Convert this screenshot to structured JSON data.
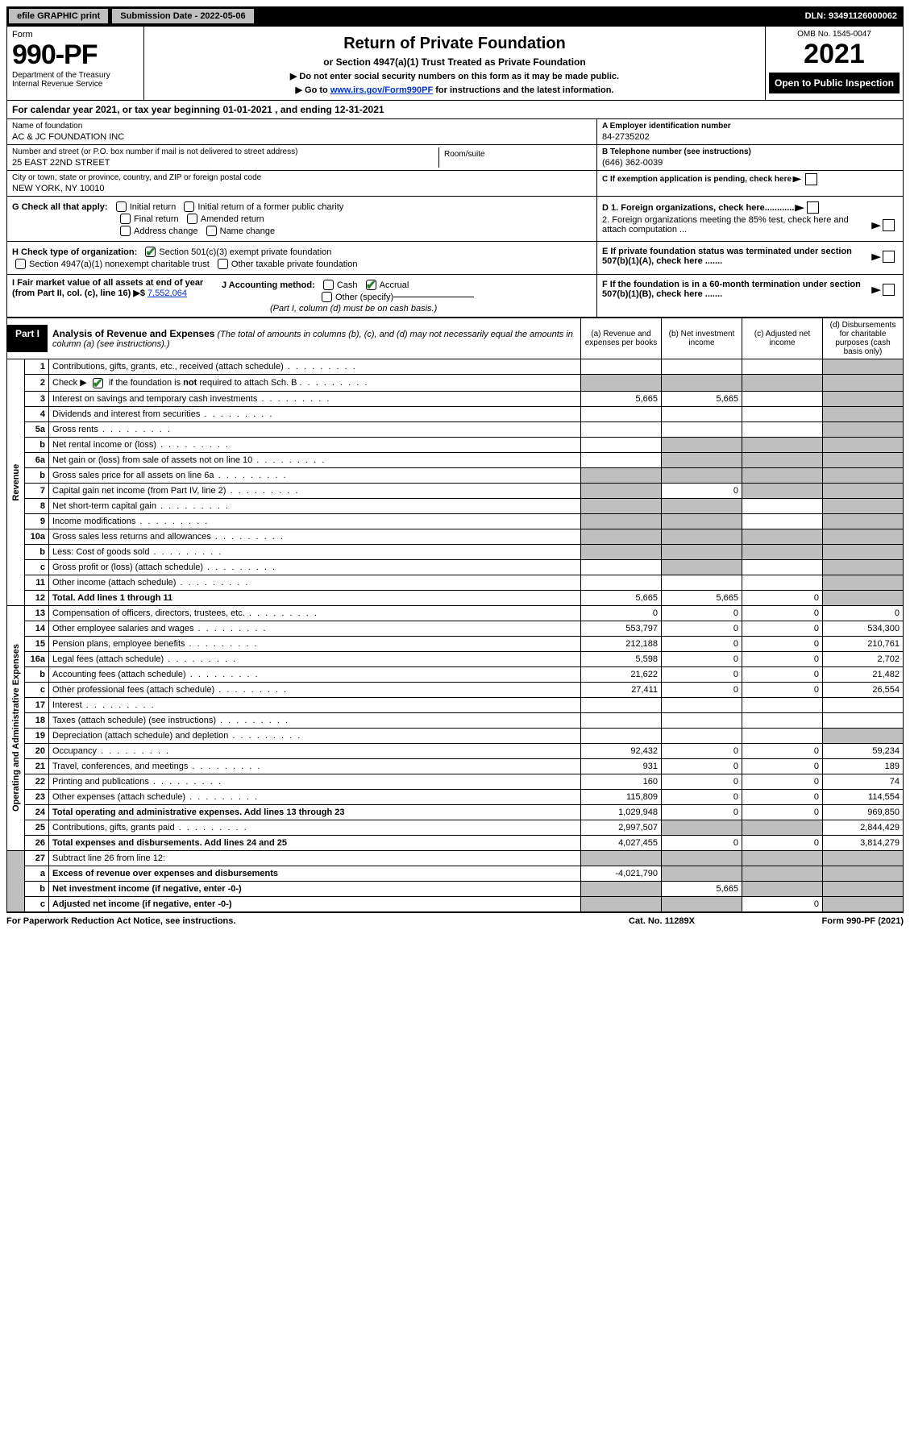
{
  "top_bar": {
    "efile": "efile GRAPHIC print",
    "sub_date_label": "Submission Date - 2022-05-06",
    "dln": "DLN: 93491126000062"
  },
  "header": {
    "form_word": "Form",
    "form_num": "990-PF",
    "dept": "Department of the Treasury",
    "irs": "Internal Revenue Service",
    "title": "Return of Private Foundation",
    "subtitle": "or Section 4947(a)(1) Trust Treated as Private Foundation",
    "note1": "▶ Do not enter social security numbers on this form as it may be made public.",
    "note2_pre": "▶ Go to ",
    "note2_link": "www.irs.gov/Form990PF",
    "note2_post": " for instructions and the latest information.",
    "omb": "OMB No. 1545-0047",
    "year": "2021",
    "open": "Open to Public Inspection"
  },
  "cal_year": "For calendar year 2021, or tax year beginning 01-01-2021              , and ending 12-31-2021",
  "name_label": "Name of foundation",
  "name": "AC & JC FOUNDATION INC",
  "street_label": "Number and street (or P.O. box number if mail is not delivered to street address)",
  "street": "25 EAST 22ND STREET",
  "room_label": "Room/suite",
  "city_label": "City or town, state or province, country, and ZIP or foreign postal code",
  "city": "NEW YORK, NY  10010",
  "a_label": "A Employer identification number",
  "a_val": "84-2735202",
  "b_label": "B Telephone number (see instructions)",
  "b_val": "(646) 362-0039",
  "c_label": "C If exemption application is pending, check here",
  "g": {
    "label": "G Check all that apply:",
    "initial": "Initial return",
    "initial_former": "Initial return of a former public charity",
    "final": "Final return",
    "amended": "Amended return",
    "addr": "Address change",
    "name": "Name change"
  },
  "d": {
    "d1": "D 1. Foreign organizations, check here.............",
    "d2": "2. Foreign organizations meeting the 85% test, check here and attach computation ..."
  },
  "h": {
    "label": "H Check type of organization:",
    "s501": "Section 501(c)(3) exempt private foundation",
    "s4947": "Section 4947(a)(1) nonexempt charitable trust",
    "other": "Other taxable private foundation"
  },
  "e_label": "E  If private foundation status was terminated under section 507(b)(1)(A), check here .......",
  "i": {
    "label": "I Fair market value of all assets at end of year (from Part II, col. (c), line 16)",
    "arrow": "▶$",
    "val": "7,552,064"
  },
  "j": {
    "label": "J Accounting method:",
    "cash": "Cash",
    "accrual": "Accrual",
    "other": "Other (specify)",
    "note": "(Part I, column (d) must be on cash basis.)"
  },
  "f_label": "F  If the foundation is in a 60-month termination under section 507(b)(1)(B), check here .......",
  "part1": {
    "tag": "Part I",
    "title": "Analysis of Revenue and Expenses",
    "desc": "(The total of amounts in columns (b), (c), and (d) may not necessarily equal the amounts in column (a) (see instructions).)"
  },
  "cols": {
    "a": "(a)   Revenue and expenses per books",
    "b": "(b)   Net investment income",
    "c": "(c)   Adjusted net income",
    "d": "(d)   Disbursements for charitable purposes (cash basis only)"
  },
  "side": {
    "rev": "Revenue",
    "exp": "Operating and Administrative Expenses"
  },
  "rows": [
    {
      "n": "1",
      "d": "Contributions, gifts, grants, etc., received (attach schedule)",
      "a": "",
      "b": "",
      "c": "",
      "dcol": "",
      "grey_d": true
    },
    {
      "n": "2",
      "d": "Check ▶ ☑ if the foundation is not required to attach Sch. B",
      "a": "",
      "b": "",
      "c": "",
      "dcol": "",
      "grey_all": true,
      "special": "check"
    },
    {
      "n": "3",
      "d": "Interest on savings and temporary cash investments",
      "a": "5,665",
      "b": "5,665",
      "c": "",
      "dcol": "",
      "grey_d": true
    },
    {
      "n": "4",
      "d": "Dividends and interest from securities",
      "a": "",
      "b": "",
      "c": "",
      "dcol": "",
      "grey_d": true
    },
    {
      "n": "5a",
      "d": "Gross rents",
      "a": "",
      "b": "",
      "c": "",
      "dcol": "",
      "grey_d": true
    },
    {
      "n": "b",
      "d": "Net rental income or (loss)",
      "a": "",
      "b": "",
      "c": "",
      "dcol": "",
      "grey_bcd": true,
      "underline": true
    },
    {
      "n": "6a",
      "d": "Net gain or (loss) from sale of assets not on line 10",
      "a": "",
      "b": "",
      "c": "",
      "dcol": "",
      "grey_bcd": true
    },
    {
      "n": "b",
      "d": "Gross sales price for all assets on line 6a",
      "a": "",
      "b": "",
      "c": "",
      "dcol": "",
      "grey_abcd": true,
      "underline": true
    },
    {
      "n": "7",
      "d": "Capital gain net income (from Part IV, line 2)",
      "a": "",
      "b": "0",
      "c": "",
      "dcol": "",
      "grey_a": true,
      "grey_cd": true
    },
    {
      "n": "8",
      "d": "Net short-term capital gain",
      "a": "",
      "b": "",
      "c": "",
      "dcol": "",
      "grey_ab": true,
      "grey_d": true
    },
    {
      "n": "9",
      "d": "Income modifications",
      "a": "",
      "b": "",
      "c": "",
      "dcol": "",
      "grey_ab": true,
      "grey_d": true
    },
    {
      "n": "10a",
      "d": "Gross sales less returns and allowances",
      "a": "",
      "b": "",
      "c": "",
      "dcol": "",
      "grey_abcd": true,
      "underline": true
    },
    {
      "n": "b",
      "d": "Less: Cost of goods sold",
      "a": "",
      "b": "",
      "c": "",
      "dcol": "",
      "grey_abcd": true,
      "underline": true
    },
    {
      "n": "c",
      "d": "Gross profit or (loss) (attach schedule)",
      "a": "",
      "b": "",
      "c": "",
      "dcol": "",
      "grey_b": true,
      "grey_d": true
    },
    {
      "n": "11",
      "d": "Other income (attach schedule)",
      "a": "",
      "b": "",
      "c": "",
      "dcol": "",
      "grey_d": true
    },
    {
      "n": "12",
      "d": "Total. Add lines 1 through 11",
      "a": "5,665",
      "b": "5,665",
      "c": "0",
      "dcol": "",
      "bold": true,
      "grey_d": true
    }
  ],
  "exp_rows": [
    {
      "n": "13",
      "d": "Compensation of officers, directors, trustees, etc.",
      "a": "0",
      "b": "0",
      "c": "0",
      "dcol": "0"
    },
    {
      "n": "14",
      "d": "Other employee salaries and wages",
      "a": "553,797",
      "b": "0",
      "c": "0",
      "dcol": "534,300"
    },
    {
      "n": "15",
      "d": "Pension plans, employee benefits",
      "a": "212,188",
      "b": "0",
      "c": "0",
      "dcol": "210,761"
    },
    {
      "n": "16a",
      "d": "Legal fees (attach schedule)",
      "a": "5,598",
      "b": "0",
      "c": "0",
      "dcol": "2,702"
    },
    {
      "n": "b",
      "d": "Accounting fees (attach schedule)",
      "a": "21,622",
      "b": "0",
      "c": "0",
      "dcol": "21,482"
    },
    {
      "n": "c",
      "d": "Other professional fees (attach schedule)",
      "a": "27,411",
      "b": "0",
      "c": "0",
      "dcol": "26,554"
    },
    {
      "n": "17",
      "d": "Interest",
      "a": "",
      "b": "",
      "c": "",
      "dcol": ""
    },
    {
      "n": "18",
      "d": "Taxes (attach schedule) (see instructions)",
      "a": "",
      "b": "",
      "c": "",
      "dcol": ""
    },
    {
      "n": "19",
      "d": "Depreciation (attach schedule) and depletion",
      "a": "",
      "b": "",
      "c": "",
      "dcol": "",
      "grey_d": true
    },
    {
      "n": "20",
      "d": "Occupancy",
      "a": "92,432",
      "b": "0",
      "c": "0",
      "dcol": "59,234"
    },
    {
      "n": "21",
      "d": "Travel, conferences, and meetings",
      "a": "931",
      "b": "0",
      "c": "0",
      "dcol": "189"
    },
    {
      "n": "22",
      "d": "Printing and publications",
      "a": "160",
      "b": "0",
      "c": "0",
      "dcol": "74"
    },
    {
      "n": "23",
      "d": "Other expenses (attach schedule)",
      "a": "115,809",
      "b": "0",
      "c": "0",
      "dcol": "114,554"
    },
    {
      "n": "24",
      "d": "Total operating and administrative expenses. Add lines 13 through 23",
      "a": "1,029,948",
      "b": "0",
      "c": "0",
      "dcol": "969,850",
      "bold": true
    },
    {
      "n": "25",
      "d": "Contributions, gifts, grants paid",
      "a": "2,997,507",
      "b": "",
      "c": "",
      "dcol": "2,844,429",
      "grey_bc": true
    },
    {
      "n": "26",
      "d": "Total expenses and disbursements. Add lines 24 and 25",
      "a": "4,027,455",
      "b": "0",
      "c": "0",
      "dcol": "3,814,279",
      "bold": true
    }
  ],
  "sub_rows": [
    {
      "n": "27",
      "d": "Subtract line 26 from line 12:",
      "grey_all": true
    },
    {
      "n": "a",
      "d": "Excess of revenue over expenses and disbursements",
      "a": "-4,021,790",
      "grey_bcd": true,
      "bold": true
    },
    {
      "n": "b",
      "d": "Net investment income (if negative, enter -0-)",
      "b": "5,665",
      "grey_a": true,
      "grey_cd": true,
      "bold": true
    },
    {
      "n": "c",
      "d": "Adjusted net income (if negative, enter -0-)",
      "c": "0",
      "grey_ab": true,
      "grey_d": true,
      "bold": true
    }
  ],
  "footer": {
    "left": "For Paperwork Reduction Act Notice, see instructions.",
    "mid": "Cat. No. 11289X",
    "right": "Form 990-PF (2021)"
  }
}
